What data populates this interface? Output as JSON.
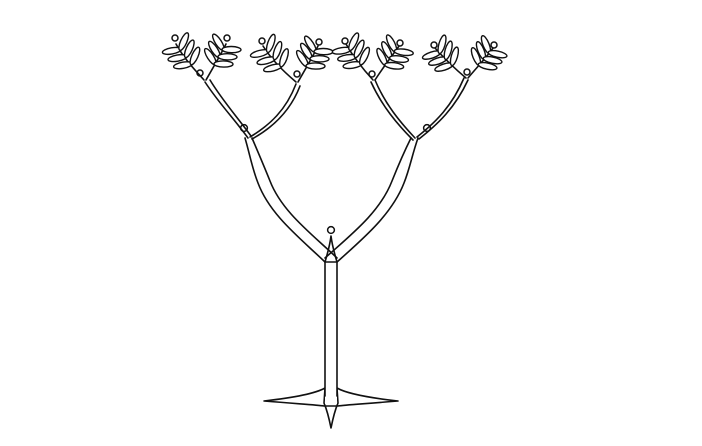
{
  "figure": {
    "subject": "branching-tree-sketch",
    "stroke_color": "#111111",
    "background_color": "#ffffff"
  }
}
